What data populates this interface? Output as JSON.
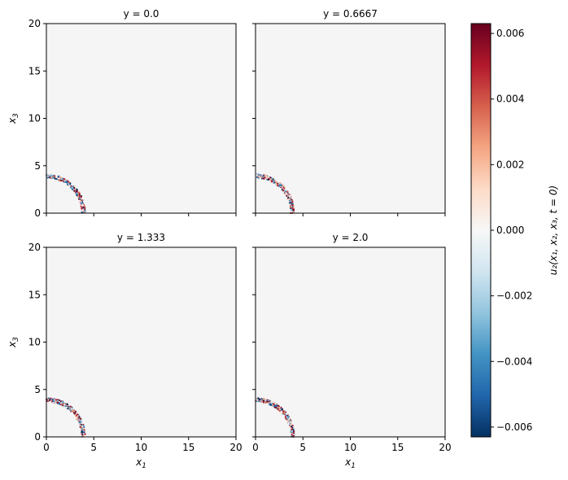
{
  "chart_data": {
    "type": "heatmap",
    "colormap": "RdBu_r",
    "background_value_color": "#f5f5f5",
    "panels": [
      {
        "title": "y = 0.0",
        "ring_radius": 4.0
      },
      {
        "title": "y = 0.6667",
        "ring_radius": 4.0
      },
      {
        "title": "y = 1.333",
        "ring_radius": 4.0
      },
      {
        "title": "y = 2.0",
        "ring_radius": 4.0
      }
    ],
    "xlim": [
      0,
      20
    ],
    "ylim": [
      0,
      20
    ],
    "x_ticks": [
      "0",
      "5",
      "10",
      "15",
      "20"
    ],
    "y_ticks": [
      "0",
      "5",
      "10",
      "15",
      "20"
    ],
    "xlabel_base": "x",
    "xlabel_sub": "1",
    "ylabel_base": "x",
    "ylabel_sub": "3",
    "colorbar": {
      "range": [
        -0.0063,
        0.0063
      ],
      "ticks": [
        "0.006",
        "0.004",
        "0.002",
        "0.000",
        "−0.002",
        "−0.004",
        "−0.006"
      ],
      "label": "u₂(x₁, x₂, x₃, t = 0)"
    }
  }
}
